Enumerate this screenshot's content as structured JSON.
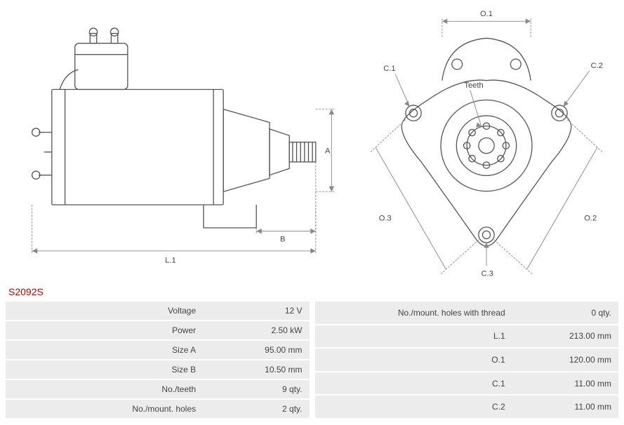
{
  "part_id": "S2092S",
  "diagram": {
    "stroke": "#555555",
    "stroke_width": 1.2,
    "dim_stroke": "#888888",
    "dim_dash": "3,2",
    "labels": {
      "L1": "L.1",
      "A": "A",
      "B": "B",
      "O1": "O.1",
      "O2": "O.2",
      "O3": "O.3",
      "C1": "C.1",
      "C2": "C.2",
      "C3": "C.3",
      "Teeth": "Teeth"
    }
  },
  "specs_left": [
    {
      "label": "Voltage",
      "value": "12 V"
    },
    {
      "label": "Power",
      "value": "2.50 kW"
    },
    {
      "label": "Size A",
      "value": "95.00 mm"
    },
    {
      "label": "Size B",
      "value": "10.50 mm"
    },
    {
      "label": "No./teeth",
      "value": "9 qty."
    },
    {
      "label": "No./mount. holes",
      "value": "2 qty."
    }
  ],
  "specs_right": [
    {
      "label": "No./mount. holes with thread",
      "value": "0 qty."
    },
    {
      "label": "L.1",
      "value": "213.00 mm"
    },
    {
      "label": "O.1",
      "value": "120.00 mm"
    },
    {
      "label": "C.1",
      "value": "11.00 mm"
    },
    {
      "label": "C.2",
      "value": "11.00 mm"
    }
  ]
}
